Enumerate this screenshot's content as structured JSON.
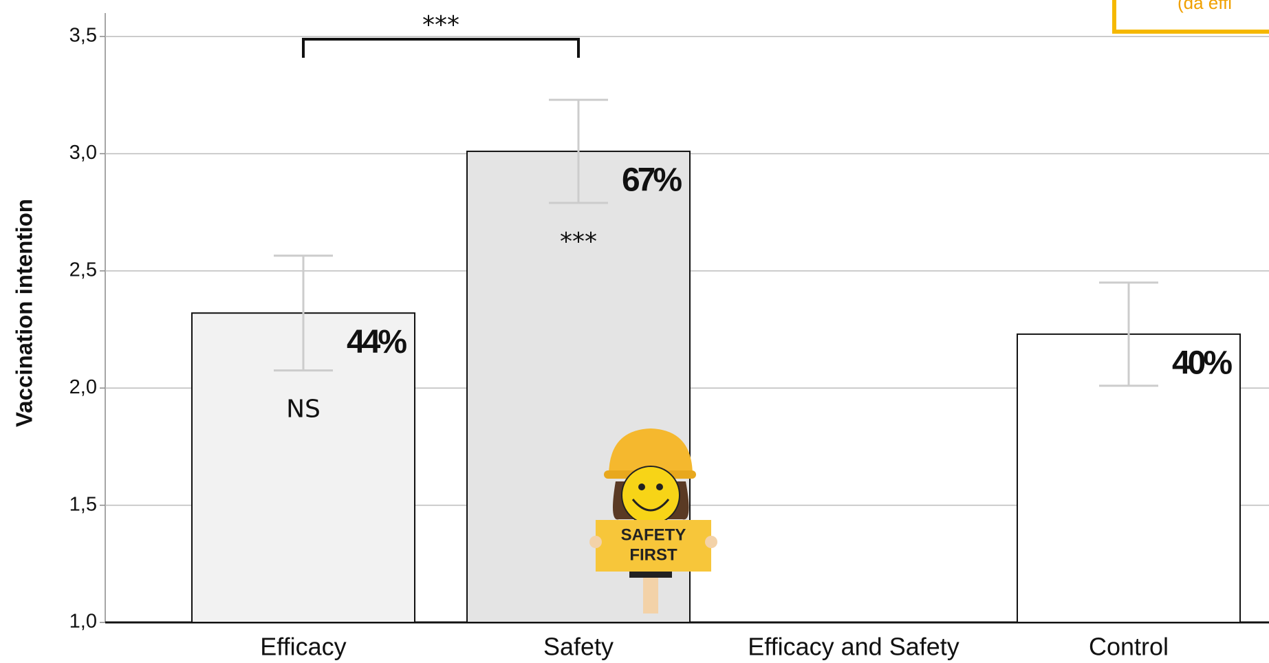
{
  "chart_data": {
    "type": "bar",
    "y_label": "Vaccination intention",
    "categories": [
      "Efficacy",
      "Safety",
      "Efficacy and Safety",
      "Control"
    ],
    "values": [
      2.32,
      3.01,
      null,
      2.23
    ],
    "errors": [
      0.245,
      0.22,
      null,
      0.22
    ],
    "colors": [
      "#f2f2f2",
      "#e4e4e4",
      null,
      "#ffffff"
    ],
    "bar_notes": [
      "44%",
      "67%",
      null,
      "40%"
    ],
    "significance": [
      "NS",
      "***",
      null,
      null
    ],
    "comparison": {
      "categories": [
        "Efficacy",
        "Safety"
      ],
      "label": "***"
    },
    "ylim": [
      1.0,
      3.6
    ],
    "yticks": [
      {
        "value": 1.0,
        "label": "1,0"
      },
      {
        "value": 1.5,
        "label": "1,5"
      },
      {
        "value": 2.0,
        "label": "2,0"
      },
      {
        "value": 2.5,
        "label": "2,5"
      },
      {
        "value": 3.0,
        "label": "3,0"
      },
      {
        "value": 3.5,
        "label": "3,5"
      }
    ],
    "grid": true,
    "corner_note": "(da effi",
    "sign_text": [
      "SAFETY",
      "FIRST"
    ]
  }
}
